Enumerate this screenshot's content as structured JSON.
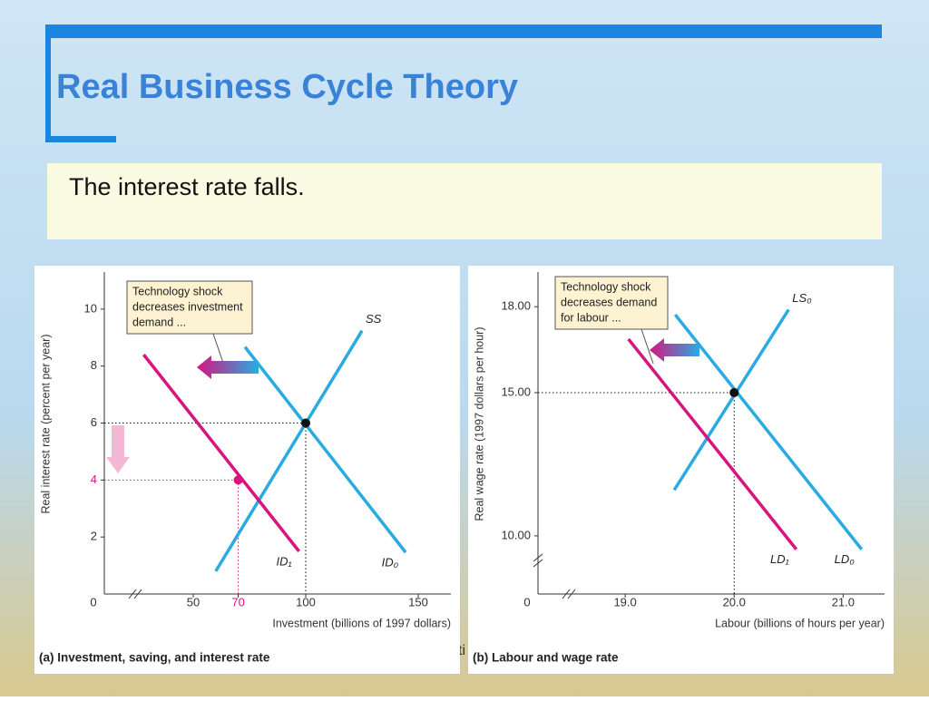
{
  "title": "Real Business Cycle Theory",
  "text": "The interest rate falls.",
  "hidden_text": "ti",
  "chart_data": [
    {
      "type": "line",
      "caption": "(a) Investment, saving, and interest rate",
      "xlabel": "Investment (billions of 1997 dollars)",
      "ylabel": "Real interest rate (percent per year)",
      "origin_label": "0",
      "xlim": [
        10.5,
        164.5
      ],
      "ylim": [
        0,
        11.3
      ],
      "xticks": [
        50,
        70,
        100,
        150
      ],
      "xtick_colors": [
        "#333333",
        "#d6157f",
        "#333333",
        "#333333"
      ],
      "yticks": [
        2,
        4,
        6,
        8,
        10
      ],
      "ytick_colors": [
        "#333333",
        "#d6157f",
        "#333333",
        "#333333",
        "#333333"
      ],
      "axis_breaks": [
        "x"
      ],
      "annotation": [
        "Technology shock",
        "decreases investment",
        "demand ..."
      ],
      "series": [
        {
          "name": "SS",
          "color": "#29abe2",
          "x": [
            60,
            125
          ],
          "y": [
            0.8,
            9.24
          ]
        },
        {
          "name": "ID₀",
          "color": "#29abe2",
          "x": [
            73,
            144.4
          ],
          "y": [
            8.67,
            1.46
          ]
        },
        {
          "name": "ID₁",
          "color": "#d6157f",
          "x": [
            28,
            97
          ],
          "y": [
            8.4,
            1.5
          ]
        }
      ],
      "points": [
        {
          "x": 100,
          "y": 6,
          "color": "#111111"
        },
        {
          "x": 70,
          "y": 4,
          "color": "#d6157f"
        }
      ]
    },
    {
      "type": "line",
      "caption": "(b) Labour and wage rate",
      "xlabel": "Labour (billions of hours per year)",
      "ylabel": "Real wage rate (1997 dollars per hour)",
      "origin_label": "0",
      "xlim": [
        18.2,
        21.38
      ],
      "ylim": [
        7.97,
        19.21
      ],
      "xticks": [
        {
          "value": 19,
          "label": "19.0"
        },
        {
          "value": 20,
          "label": "20.0"
        },
        {
          "value": 21,
          "label": "21.0"
        }
      ],
      "xtick_colors": [
        "#333333",
        "#333333",
        "#333333"
      ],
      "yticks": [
        {
          "value": 10,
          "label": "10.00"
        },
        {
          "value": 15,
          "label": "15.00"
        },
        {
          "value": 18,
          "label": "18.00"
        }
      ],
      "ytick_colors": [
        "#333333",
        "#333333",
        "#333333"
      ],
      "axis_breaks": [
        "x",
        "y"
      ],
      "annotation": [
        "Technology shock",
        "decreases demand",
        "for labour ..."
      ],
      "series": [
        {
          "name": "LS₀",
          "color": "#29abe2",
          "x": [
            19.45,
            20.5
          ],
          "y": [
            11.6,
            17.9
          ]
        },
        {
          "name": "LD₀",
          "color": "#29abe2",
          "x": [
            19.46,
            21.17
          ],
          "y": [
            17.72,
            9.53
          ]
        },
        {
          "name": "LD₁",
          "color": "#d6157f",
          "x": [
            19.03,
            20.57
          ],
          "y": [
            16.87,
            9.53
          ]
        }
      ],
      "points": [
        {
          "x": 20,
          "y": 15,
          "color": "#111111"
        }
      ]
    }
  ]
}
